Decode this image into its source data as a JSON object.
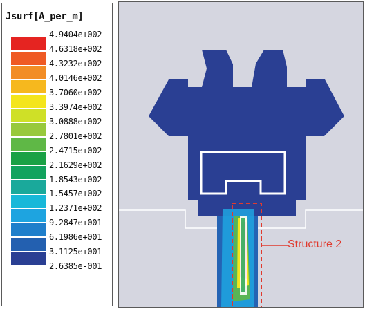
{
  "legend": {
    "title": "Jsurf[A_per_m]",
    "ticks": [
      "4.9404e+002",
      "4.6318e+002",
      "4.3232e+002",
      "4.0146e+002",
      "3.7060e+002",
      "3.3974e+002",
      "3.0888e+002",
      "2.7801e+002",
      "2.4715e+002",
      "2.1629e+002",
      "1.8543e+002",
      "1.5457e+002",
      "1.2371e+002",
      "9.2847e+001",
      "6.1986e+001",
      "3.1125e+001",
      "2.6385e-001"
    ],
    "colors": [
      "#e52421",
      "#ef5a24",
      "#f28d25",
      "#f6b81e",
      "#f4e51c",
      "#cfe027",
      "#98c93c",
      "#5fb846",
      "#1aa145",
      "#12a35e",
      "#1aa99b",
      "#18b8d9",
      "#1ea4e0",
      "#1f7fcb",
      "#2360b0",
      "#2a3f93"
    ]
  },
  "annotation": {
    "label": "Structure 2"
  },
  "colors": {
    "background": "#d5d6e0",
    "structure": "#2a3f93",
    "highlight_box": "#e03a2e"
  }
}
